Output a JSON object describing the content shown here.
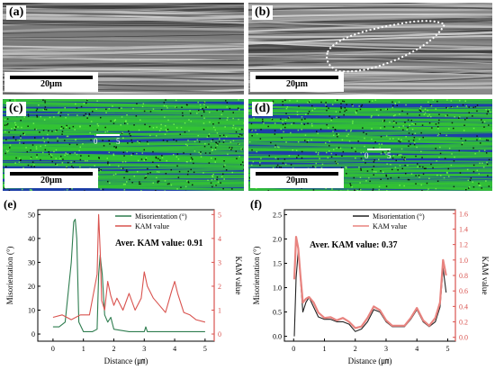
{
  "panels": {
    "a": {
      "label": "(a)",
      "scale": "20μm"
    },
    "b": {
      "label": "(b)",
      "scale": "20μm"
    },
    "c": {
      "label": "(c)",
      "scale": "20μm",
      "dist_start": "0",
      "dist_end": "5"
    },
    "d": {
      "label": "(d)",
      "scale": "20μm",
      "dist_start": "0",
      "dist_end": "5"
    }
  },
  "colors": {
    "misorientation": "#2e7d4f",
    "kam": "#d9534f",
    "kam_axis": "#d9534f",
    "ebsd_green": "#33c433",
    "ebsd_blue": "#1f5fd6"
  },
  "chart_data": [
    {
      "id": "e",
      "type": "line",
      "label": "(e)",
      "xlabel": "Distance (㎛)",
      "ylabel": "Misorientation (°)",
      "y2label": "KAM value",
      "xlim": [
        -0.5,
        5.3
      ],
      "xticks": [
        "0",
        "1",
        "2",
        "3",
        "4",
        "5"
      ],
      "ylim": [
        -3,
        52
      ],
      "yticks": [
        "0",
        "10",
        "20",
        "30",
        "40",
        "50"
      ],
      "y2lim": [
        -0.3,
        5.2
      ],
      "y2ticks": [
        "0",
        "1",
        "2",
        "3",
        "4",
        "5"
      ],
      "annotation": "Aver. KAM value: 0.91",
      "series": [
        {
          "name": "Misorientation (°)",
          "axis": "left",
          "color": "#2e7d4f",
          "x": [
            0,
            0.2,
            0.4,
            0.6,
            0.68,
            0.73,
            0.78,
            0.85,
            1.0,
            1.3,
            1.45,
            1.5,
            1.55,
            1.62,
            1.7,
            1.8,
            1.9,
            2.0,
            2.5,
            3.0,
            3.05,
            3.1,
            3.5,
            4.0,
            4.5,
            5.0
          ],
          "y": [
            3,
            3,
            5,
            30,
            47,
            48,
            40,
            5,
            1,
            1,
            2,
            25,
            33,
            25,
            8,
            5,
            7,
            2,
            1,
            1,
            3,
            1,
            1,
            1,
            1,
            1
          ]
        },
        {
          "name": "KAM value",
          "axis": "right",
          "color": "#d9534f",
          "x": [
            0,
            0.3,
            0.6,
            0.9,
            1.2,
            1.45,
            1.5,
            1.55,
            1.6,
            1.7,
            1.8,
            1.9,
            2.0,
            2.1,
            2.3,
            2.5,
            2.7,
            2.9,
            3.0,
            3.1,
            3.3,
            3.5,
            3.7,
            3.9,
            4.0,
            4.1,
            4.3,
            4.5,
            4.7,
            5.0
          ],
          "y": [
            0.7,
            0.8,
            0.6,
            0.8,
            0.8,
            2.5,
            5.0,
            3.5,
            1.4,
            1.0,
            2.2,
            1.6,
            1.2,
            1.5,
            1.0,
            1.7,
            1.0,
            1.5,
            2.6,
            2.0,
            1.5,
            1.2,
            0.9,
            1.8,
            2.2,
            1.7,
            0.9,
            0.8,
            0.6,
            0.5
          ]
        }
      ],
      "legend": "top-right"
    },
    {
      "id": "f",
      "type": "line",
      "label": "(f)",
      "xlabel": "Distance (㎛)",
      "ylabel": "Misorientation (°)",
      "y2label": "KAM value",
      "xlim": [
        -0.3,
        5.25
      ],
      "xticks": [
        "0",
        "1",
        "2",
        "3",
        "4",
        "5"
      ],
      "ylim": [
        -0.1,
        2.6
      ],
      "yticks": [
        "0.0",
        "0.5",
        "1.0",
        "1.5",
        "2.0",
        "2.5"
      ],
      "y2lim": [
        -0.05,
        1.65
      ],
      "y2ticks": [
        "0.0",
        "0.2",
        "0.4",
        "0.6",
        "0.8",
        "1.0",
        "1.2",
        "1.4",
        "1.6"
      ],
      "annotation": "Aver. KAM value: 0.37",
      "series": [
        {
          "name": "Misorientation (°)",
          "axis": "left",
          "color": "#222222",
          "x": [
            0.02,
            0.08,
            0.15,
            0.22,
            0.3,
            0.4,
            0.5,
            0.65,
            0.8,
            1.0,
            1.2,
            1.4,
            1.6,
            1.8,
            2.0,
            2.2,
            2.4,
            2.6,
            2.8,
            3.0,
            3.2,
            3.4,
            3.6,
            3.8,
            4.0,
            4.2,
            4.4,
            4.6,
            4.75,
            4.85,
            4.95
          ],
          "y": [
            0.0,
            1.2,
            1.75,
            1.2,
            0.5,
            0.7,
            0.8,
            0.6,
            0.4,
            0.35,
            0.35,
            0.3,
            0.3,
            0.25,
            0.1,
            0.15,
            0.3,
            0.55,
            0.5,
            0.3,
            0.2,
            0.2,
            0.2,
            0.35,
            0.55,
            0.3,
            0.2,
            0.3,
            0.6,
            1.4,
            0.9
          ]
        },
        {
          "name": "KAM value",
          "axis": "right",
          "color": "#e8837f",
          "x": [
            0.02,
            0.08,
            0.15,
            0.22,
            0.3,
            0.4,
            0.5,
            0.65,
            0.8,
            1.0,
            1.2,
            1.4,
            1.6,
            1.8,
            2.0,
            2.2,
            2.4,
            2.6,
            2.8,
            3.0,
            3.2,
            3.4,
            3.6,
            3.8,
            4.0,
            4.2,
            4.4,
            4.6,
            4.75,
            4.85,
            4.95
          ],
          "y": [
            0.75,
            1.3,
            1.15,
            0.8,
            0.45,
            0.5,
            0.52,
            0.45,
            0.32,
            0.25,
            0.26,
            0.22,
            0.25,
            0.2,
            0.12,
            0.14,
            0.25,
            0.4,
            0.35,
            0.22,
            0.15,
            0.15,
            0.15,
            0.25,
            0.38,
            0.22,
            0.15,
            0.25,
            0.45,
            1.0,
            0.8
          ]
        }
      ],
      "legend": "top-right"
    }
  ]
}
